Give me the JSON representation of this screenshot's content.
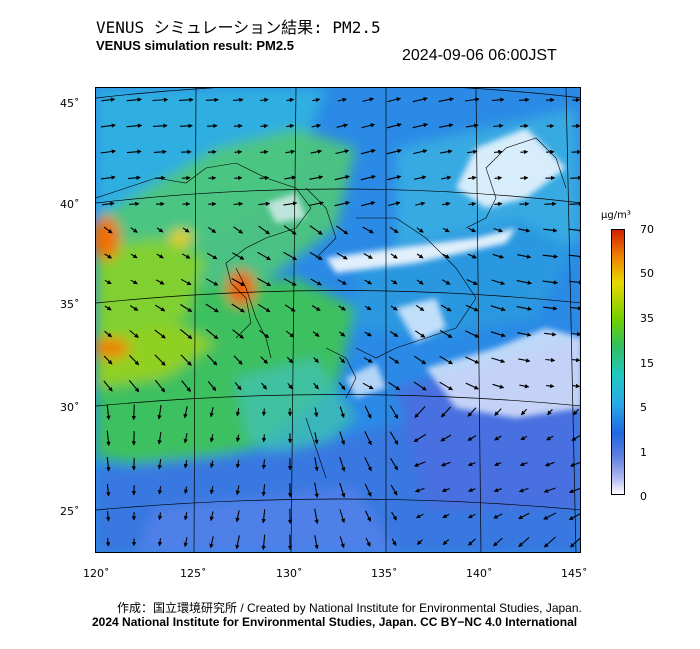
{
  "title_jp": "VENUS シミュレーション結果: PM2.5",
  "title_en": "VENUS simulation result: PM2.5",
  "timestamp": "2024-09-06 06:00JST",
  "axes": {
    "lat_labels": [
      "45˚",
      "40˚",
      "35˚",
      "30˚",
      "25˚"
    ],
    "lon_labels": [
      "120˚",
      "125˚",
      "130˚",
      "135˚",
      "140˚",
      "145˚"
    ]
  },
  "colorbar": {
    "unit": "μg/m³",
    "ticks": [
      "70",
      "50",
      "35",
      "15",
      "5",
      "1",
      "0"
    ]
  },
  "credit_line1": "作成：国立環境研究所 / Created by National Institute for Environmental Studies, Japan.",
  "credit_line2": "2024 National Institute for Environmental Studies, Japan. CC BY−NC 4.0 International",
  "colors": {
    "very_high": "#d22000",
    "high": "#f08000",
    "moderate": "#70d000",
    "low": "#20c8c0",
    "very_low": "#2068e0",
    "clean": "#ffffff"
  }
}
